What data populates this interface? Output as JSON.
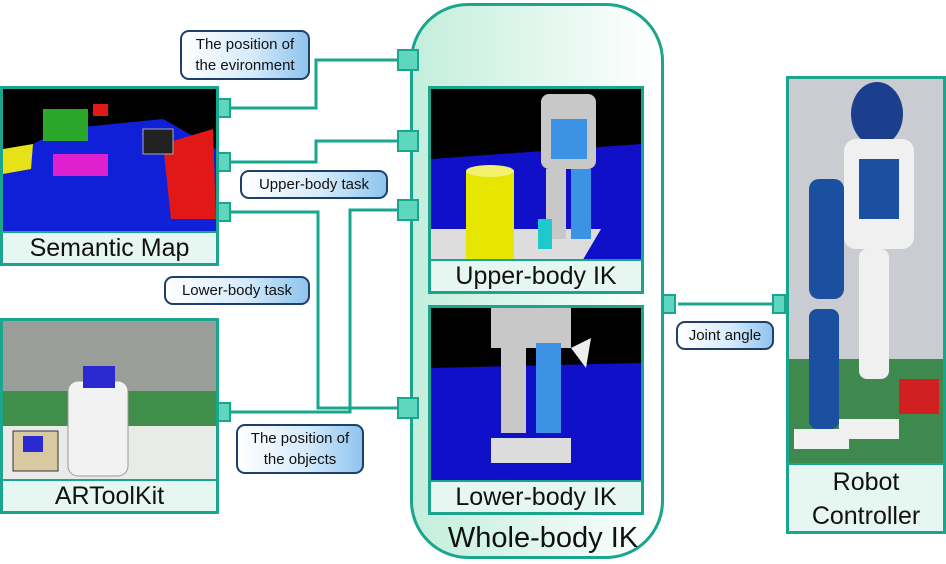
{
  "modules": {
    "semantic_map": "Semantic Map",
    "artoolkit": "ARToolKit",
    "upper_body_ik": "Upper-body IK",
    "lower_body_ik": "Lower-body IK",
    "whole_body_ik": "Whole-body IK",
    "robot_controller": "Robot\nController"
  },
  "labels": {
    "environment_position": "The position of\nthe evironment",
    "upper_body_task": "Upper-body task",
    "lower_body_task": "Lower-body task",
    "objects_position": "The position of\nthe objects",
    "joint_angle": "Joint angle"
  },
  "colors": {
    "connector": "#1aa58f",
    "port_fill": "#5fd6be",
    "label_border": "#1e3f6b"
  }
}
